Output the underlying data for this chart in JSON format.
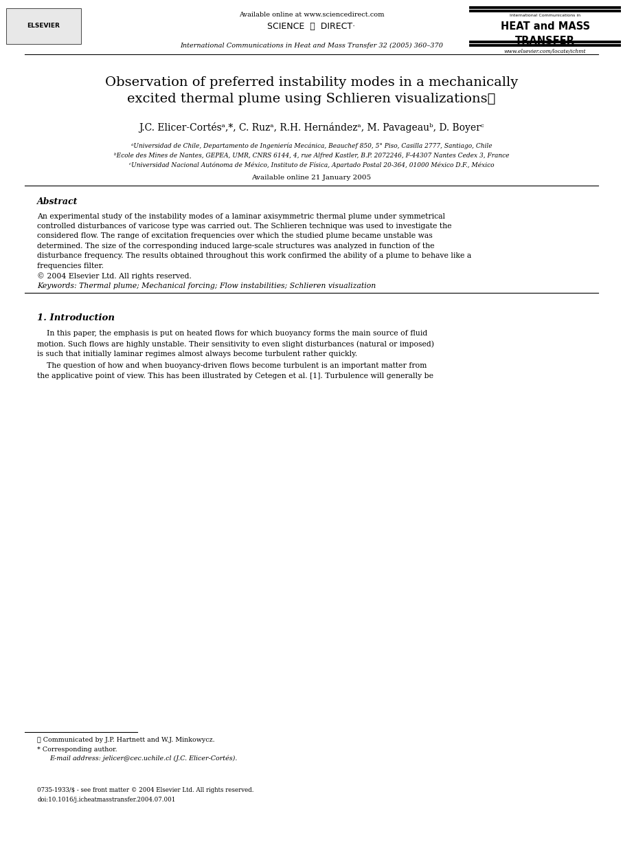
{
  "bg_color": "#ffffff",
  "page_width": 9.07,
  "page_height": 12.38,
  "header": {
    "available_online": "Available online at www.sciencedirect.com",
    "journal_name": "International Communications in Heat and Mass Transfer 32 (2005) 360–370",
    "website": "www.elsevier.com/locate/ichmt",
    "sciencedirect_text": "SCIENCE  ⓓ  DIRECT·",
    "heat_mass_line1": "International Communications in",
    "heat_mass_line2": "HEAT and MASS",
    "heat_mass_line3": "TRANSFER"
  },
  "title_line1": "Observation of preferred instability modes in a mechanically",
  "title_line2": "excited thermal plume using Schlieren visualizations",
  "title_star": "☆",
  "authors": "J.C. Elicer-Cortésᵃ,*, C. Ruzᵃ, R.H. Hernándezᵃ, M. Pavageauᵇ, D. Boyerᶜ",
  "affil_a": "ᵃUniversidad de Chile, Departamento de Ingeniería Mecánica, Beauchef 850, 5° Piso, Casilla 2777, Santiago, Chile",
  "affil_b": "ᵇEcole des Mines de Nantes, GEPEA, UMR, CNRS 6144, 4, rue Alfred Kastler, B.P. 2072246, F-44307 Nantes Cedex 3, France",
  "affil_c": "ᶜUniversidad Nacional Autónoma de México, Instituto de Física, Apartado Postal 20-364, 01000 México D.F., México",
  "available_online_date": "Available online 21 January 2005",
  "abstract_label": "Abstract",
  "abstract_body": "An experimental study of the instability modes of a laminar axisymmetric thermal plume under symmetrical\ncontrolled disturbances of varicose type was carried out. The Schlieren technique was used to investigate the\nconsidered flow. The range of excitation frequencies over which the studied plume became unstable was\ndetermined. The size of the corresponding induced large-scale structures was analyzed in function of the\ndisturbance frequency. The results obtained throughout this work confirmed the ability of a plume to behave like a\nfrequencies filter.\n© 2004 Elsevier Ltd. All rights reserved.",
  "keywords": "Keywords: Thermal plume; Mechanical forcing; Flow instabilities; Schlieren visualization",
  "section1_title": "1. Introduction",
  "para1": "    In this paper, the emphasis is put on heated flows for which buoyancy forms the main source of fluid\nmotion. Such flows are highly unstable. Their sensitivity to even slight disturbances (natural or imposed)\nis such that initially laminar regimes almost always become turbulent rather quickly.",
  "para2": "    The question of how and when buoyancy-driven flows become turbulent is an important matter from\nthe applicative point of view. This has been illustrated by Cetegen et al. [1]. Turbulence will generally be",
  "footnote1": "☆ Communicated by J.P. Hartnett and W.J. Minkowycz.",
  "footnote2": "* Corresponding author.",
  "footnote3": "E-mail address: jelicer@cec.uchile.cl (J.C. Elicer-Cortés).",
  "footer_issn": "0735-1933/$ - see front matter © 2004 Elsevier Ltd. All rights reserved.",
  "footer_doi": "doi:10.1016/j.icheatmasstransfer.2004.07.001"
}
